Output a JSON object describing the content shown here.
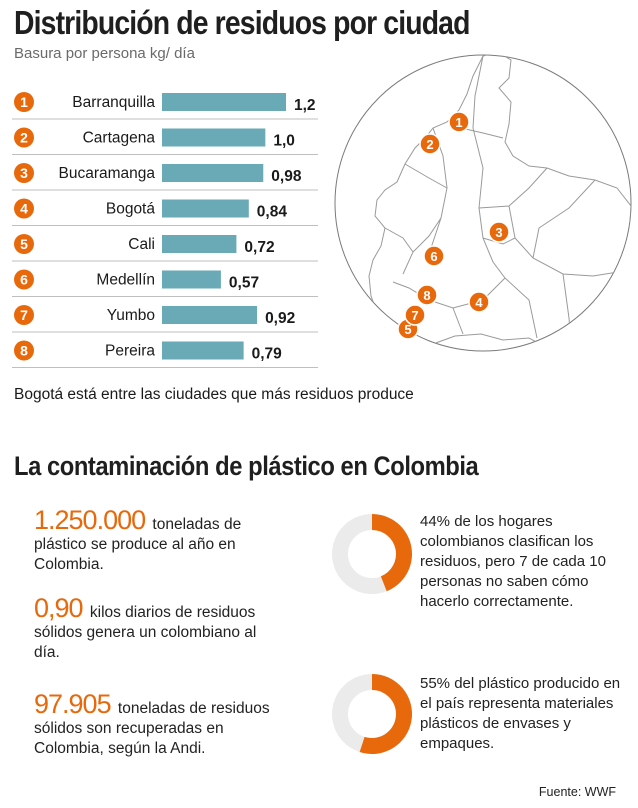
{
  "title": "Distribución de residuos por ciudad",
  "subtitle": "Basura por persona kg/ día",
  "chart_data": {
    "type": "bar",
    "orientation": "horizontal",
    "title": "Distribución de residuos por ciudad",
    "subtitle": "Basura por persona kg/ día",
    "ranks": [
      "1",
      "2",
      "3",
      "4",
      "5",
      "6",
      "7",
      "8"
    ],
    "categories": [
      "Barranquilla",
      "Cartagena",
      "Bucaramanga",
      "Bogotá",
      "Cali",
      "Medellín",
      "Yumbo",
      "Pereira"
    ],
    "values": [
      1.2,
      1.0,
      0.98,
      0.84,
      0.72,
      0.57,
      0.92,
      0.79
    ],
    "value_labels": [
      "1,2",
      "1,0",
      "0,98",
      "0,84",
      "0,72",
      "0,57",
      "0,92",
      "0,79"
    ],
    "xlim": [
      0,
      1.2
    ],
    "bar_color": "#6aaab7",
    "marker_color": "#e8690c"
  },
  "map": {
    "markers": [
      "1",
      "2",
      "3",
      "4",
      "5",
      "6",
      "7",
      "8"
    ]
  },
  "note": "Bogotá está entre las ciudades que más residuos produce",
  "section_title": "La contaminación de plástico en Colombia",
  "stats": [
    {
      "value": "1.250.000",
      "text": " toneladas de plástico se produce al año en Colombia."
    },
    {
      "value": "0,90",
      "text": " kilos diarios de residuos sólidos genera un colombiano al día."
    },
    {
      "value": "97.905",
      "text": " toneladas de residuos sólidos son recuperadas en Colombia, según la Andi."
    }
  ],
  "donuts": [
    {
      "percent": 44,
      "label": "44%",
      "text": " de los hogares colombianos clasifican los residuos, pero 7 de cada 10 personas no saben cómo hacerlo correctamente."
    },
    {
      "percent": 55,
      "label": "55%",
      "text": " del plástico producido en el país representa materiales plásticos de envases y empaques."
    }
  ],
  "source": "Fuente: WWF",
  "colors": {
    "accent": "#e8690c",
    "bar": "#6aaab7",
    "donut_bg": "#ebebeb",
    "row_line": "#bfbfbf",
    "map_line": "#9a9a9a"
  }
}
